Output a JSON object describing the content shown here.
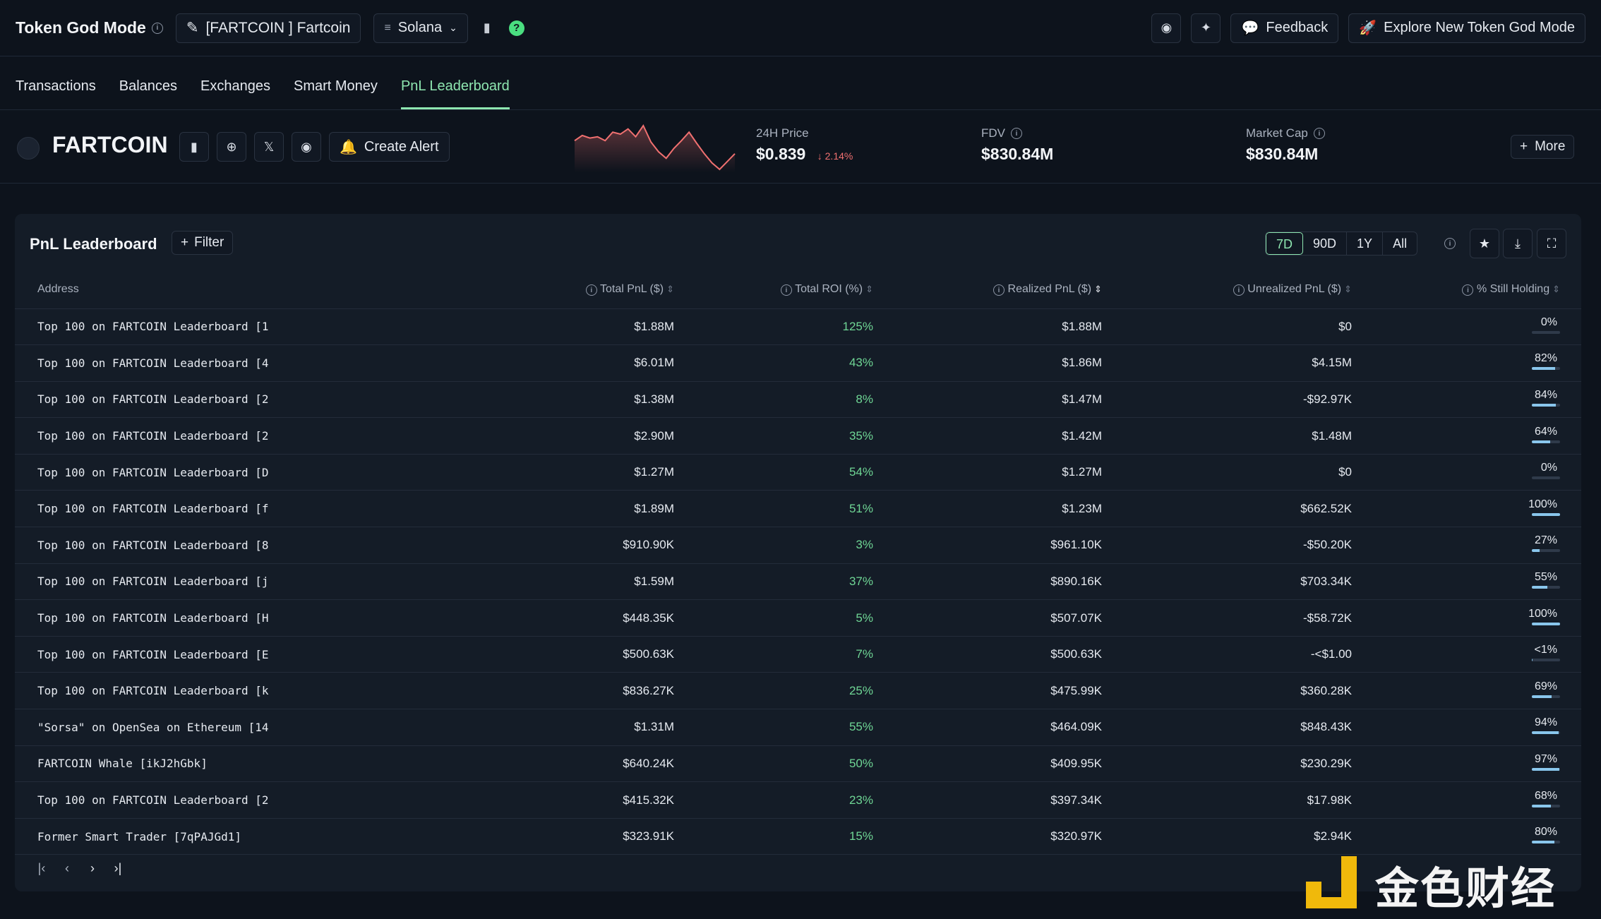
{
  "header": {
    "app_title": "Token God Mode",
    "token_selector": "[FARTCOIN ] Fartcoin",
    "chain": "Solana",
    "feedback_label": "Feedback",
    "explore_label": "Explore New Token God Mode"
  },
  "tabs": [
    {
      "label": "Transactions"
    },
    {
      "label": "Balances"
    },
    {
      "label": "Exchanges"
    },
    {
      "label": "Smart Money"
    },
    {
      "label": "PnL Leaderboard",
      "active": true
    }
  ],
  "token": {
    "name": "FARTCOIN",
    "create_alert_label": "Create Alert",
    "price_label": "24H Price",
    "price": "$0.839",
    "price_change": "2.14%",
    "fdv_label": "FDV",
    "fdv": "$830.84M",
    "mcap_label": "Market Cap",
    "mcap": "$830.84M",
    "more_label": "More",
    "sparkline": [
      0.62,
      0.7,
      0.66,
      0.68,
      0.62,
      0.75,
      0.72,
      0.8,
      0.68,
      0.85,
      0.6,
      0.45,
      0.35,
      0.5,
      0.62,
      0.75,
      0.58,
      0.42,
      0.28,
      0.18,
      0.3,
      0.42
    ]
  },
  "panel": {
    "title": "PnL Leaderboard",
    "filter_label": "Filter",
    "ranges": [
      "7D",
      "90D",
      "1Y",
      "All"
    ],
    "active_range": "7D"
  },
  "table": {
    "columns": [
      "Address",
      "Total PnL ($)",
      "Total ROI (%)",
      "Realized PnL ($)",
      "Unrealized PnL ($)",
      "% Still Holding"
    ],
    "rows": [
      {
        "address": "Top 100 on FARTCOIN Leaderboard [1",
        "total_pnl": "$1.88M",
        "roi": "125%",
        "realized": "$1.88M",
        "unrealized": "$0",
        "holding": "0%",
        "holding_frac": 0.0
      },
      {
        "address": "Top 100 on FARTCOIN Leaderboard [4",
        "total_pnl": "$6.01M",
        "roi": "43%",
        "realized": "$1.86M",
        "unrealized": "$4.15M",
        "holding": "82%",
        "holding_frac": 0.82
      },
      {
        "address": "Top 100 on FARTCOIN Leaderboard [2",
        "total_pnl": "$1.38M",
        "roi": "8%",
        "realized": "$1.47M",
        "unrealized": "-$92.97K",
        "holding": "84%",
        "holding_frac": 0.84
      },
      {
        "address": "Top 100 on FARTCOIN Leaderboard [2",
        "total_pnl": "$2.90M",
        "roi": "35%",
        "realized": "$1.42M",
        "unrealized": "$1.48M",
        "holding": "64%",
        "holding_frac": 0.64
      },
      {
        "address": "Top 100 on FARTCOIN Leaderboard [D",
        "total_pnl": "$1.27M",
        "roi": "54%",
        "realized": "$1.27M",
        "unrealized": "$0",
        "holding": "0%",
        "holding_frac": 0.0
      },
      {
        "address": "Top 100 on FARTCOIN Leaderboard [f",
        "total_pnl": "$1.89M",
        "roi": "51%",
        "realized": "$1.23M",
        "unrealized": "$662.52K",
        "holding": "100%",
        "holding_frac": 1.0
      },
      {
        "address": "Top 100 on FARTCOIN Leaderboard [8",
        "total_pnl": "$910.90K",
        "roi": "3%",
        "realized": "$961.10K",
        "unrealized": "-$50.20K",
        "holding": "27%",
        "holding_frac": 0.27
      },
      {
        "address": "Top 100 on FARTCOIN Leaderboard [j",
        "total_pnl": "$1.59M",
        "roi": "37%",
        "realized": "$890.16K",
        "unrealized": "$703.34K",
        "holding": "55%",
        "holding_frac": 0.55
      },
      {
        "address": "Top 100 on FARTCOIN Leaderboard [H",
        "total_pnl": "$448.35K",
        "roi": "5%",
        "realized": "$507.07K",
        "unrealized": "-$58.72K",
        "holding": "100%",
        "holding_frac": 1.0
      },
      {
        "address": "Top 100 on FARTCOIN Leaderboard [E",
        "total_pnl": "$500.63K",
        "roi": "7%",
        "realized": "$500.63K",
        "unrealized": "-<$1.00",
        "holding": "<1%",
        "holding_frac": 0.01
      },
      {
        "address": "Top 100 on FARTCOIN Leaderboard [k",
        "total_pnl": "$836.27K",
        "roi": "25%",
        "realized": "$475.99K",
        "unrealized": "$360.28K",
        "holding": "69%",
        "holding_frac": 0.69
      },
      {
        "address": "\"Sorsa\" on OpenSea on Ethereum [14",
        "total_pnl": "$1.31M",
        "roi": "55%",
        "realized": "$464.09K",
        "unrealized": "$848.43K",
        "holding": "94%",
        "holding_frac": 0.94
      },
      {
        "address": "FARTCOIN Whale [ikJ2hGbk]",
        "total_pnl": "$640.24K",
        "roi": "50%",
        "realized": "$409.95K",
        "unrealized": "$230.29K",
        "holding": "97%",
        "holding_frac": 0.97
      },
      {
        "address": "Top 100 on FARTCOIN Leaderboard [2",
        "total_pnl": "$415.32K",
        "roi": "23%",
        "realized": "$397.34K",
        "unrealized": "$17.98K",
        "holding": "68%",
        "holding_frac": 0.68
      },
      {
        "address": "Former Smart Trader [7qPAJGd1]",
        "total_pnl": "$323.91K",
        "roi": "15%",
        "realized": "$320.97K",
        "unrealized": "$2.94K",
        "holding": "80%",
        "holding_frac": 0.8
      }
    ]
  },
  "watermark": {
    "text": "金色财经"
  },
  "colors": {
    "accent": "#8ee6b0",
    "negative": "#f07070",
    "bar": "#89c6ec"
  }
}
